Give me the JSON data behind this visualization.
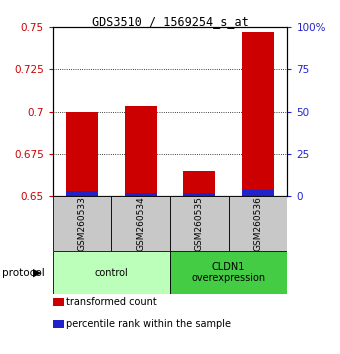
{
  "title": "GDS3510 / 1569254_s_at",
  "samples": [
    "GSM260533",
    "GSM260534",
    "GSM260535",
    "GSM260536"
  ],
  "red_values": [
    0.7,
    0.703,
    0.665,
    0.747
  ],
  "blue_values": [
    0.6535,
    0.652,
    0.652,
    0.654
  ],
  "baseline": 0.65,
  "ylim_left": [
    0.65,
    0.75
  ],
  "ylim_right": [
    0,
    100
  ],
  "yticks_left": [
    0.65,
    0.675,
    0.7,
    0.725,
    0.75
  ],
  "yticks_right": [
    0,
    25,
    50,
    75,
    100
  ],
  "ytick_labels_left": [
    "0.65",
    "0.675",
    "0.7",
    "0.725",
    "0.75"
  ],
  "ytick_labels_right": [
    "0",
    "25",
    "50",
    "75",
    "100%"
  ],
  "red_color": "#cc0000",
  "blue_color": "#2222cc",
  "bar_width": 0.55,
  "groups": [
    {
      "label": "control",
      "samples": [
        0,
        1
      ],
      "color": "#bbffbb"
    },
    {
      "label": "CLDN1\noverexpression",
      "samples": [
        2,
        3
      ],
      "color": "#44cc44"
    }
  ],
  "protocol_label": "protocol",
  "legend_items": [
    {
      "color": "#cc0000",
      "label": "transformed count"
    },
    {
      "color": "#2222cc",
      "label": "percentile rank within the sample"
    }
  ],
  "label_area_bg": "#c8c8c8",
  "fig_bg": "#ffffff"
}
